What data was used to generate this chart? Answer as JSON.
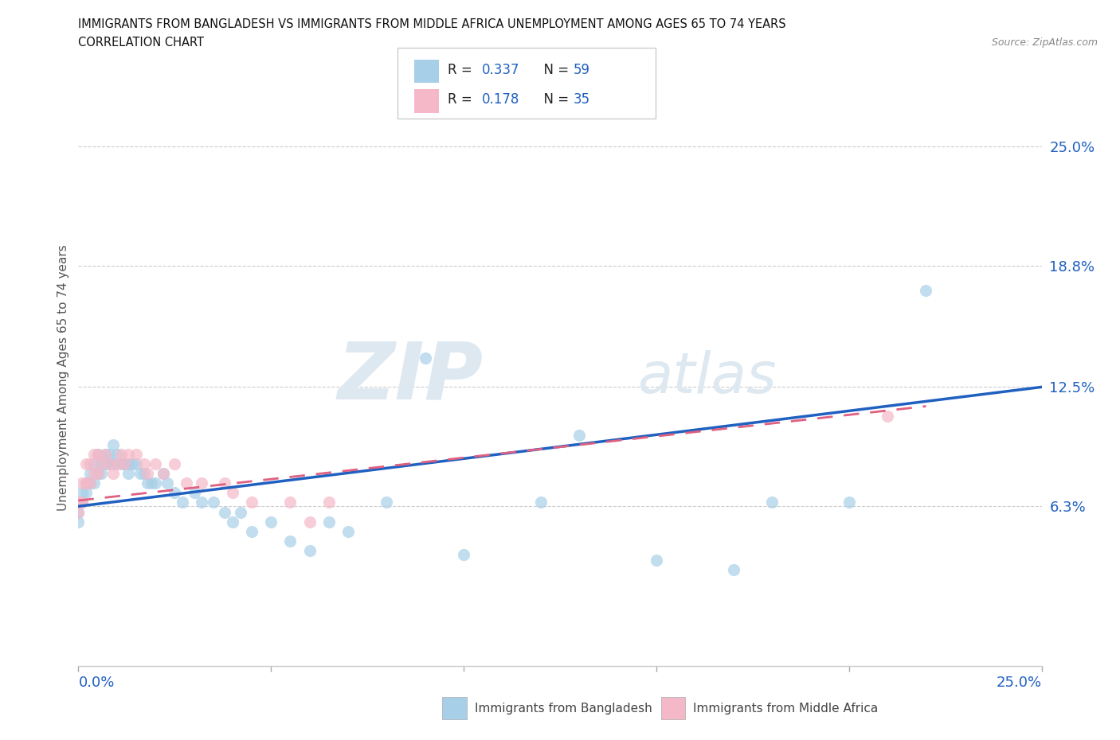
{
  "title_line1": "IMMIGRANTS FROM BANGLADESH VS IMMIGRANTS FROM MIDDLE AFRICA UNEMPLOYMENT AMONG AGES 65 TO 74 YEARS",
  "title_line2": "CORRELATION CHART",
  "source": "Source: ZipAtlas.com",
  "ylabel": "Unemployment Among Ages 65 to 74 years",
  "yticks": [
    "6.3%",
    "12.5%",
    "18.8%",
    "25.0%"
  ],
  "ytick_vals": [
    0.063,
    0.125,
    0.188,
    0.25
  ],
  "xrange": [
    0.0,
    0.25
  ],
  "yrange": [
    -0.02,
    0.28
  ],
  "color_bangladesh": "#a8cfe8",
  "color_middle_africa": "#f4b8c8",
  "color_trend_bangladesh": "#2060c0",
  "color_trend_middle_africa": "#e06080",
  "watermark_zip": "ZIP",
  "watermark_atlas": "atlas",
  "legend_label1": "Immigrants from Bangladesh",
  "legend_label2": "Immigrants from Middle Africa",
  "bang_x": [
    0.0,
    0.0,
    0.0,
    0.001,
    0.001,
    0.002,
    0.002,
    0.003,
    0.003,
    0.004,
    0.004,
    0.005,
    0.005,
    0.006,
    0.006,
    0.007,
    0.007,
    0.008,
    0.008,
    0.009,
    0.009,
    0.01,
    0.011,
    0.012,
    0.013,
    0.013,
    0.014,
    0.015,
    0.016,
    0.017,
    0.018,
    0.019,
    0.02,
    0.022,
    0.023,
    0.025,
    0.027,
    0.03,
    0.032,
    0.035,
    0.038,
    0.04,
    0.042,
    0.045,
    0.05,
    0.055,
    0.06,
    0.065,
    0.07,
    0.08,
    0.09,
    0.1,
    0.12,
    0.13,
    0.15,
    0.17,
    0.18,
    0.2,
    0.22
  ],
  "bang_y": [
    0.065,
    0.06,
    0.055,
    0.07,
    0.065,
    0.075,
    0.07,
    0.08,
    0.075,
    0.085,
    0.075,
    0.09,
    0.08,
    0.085,
    0.08,
    0.09,
    0.085,
    0.09,
    0.085,
    0.095,
    0.085,
    0.09,
    0.085,
    0.085,
    0.085,
    0.08,
    0.085,
    0.085,
    0.08,
    0.08,
    0.075,
    0.075,
    0.075,
    0.08,
    0.075,
    0.07,
    0.065,
    0.07,
    0.065,
    0.065,
    0.06,
    0.055,
    0.06,
    0.05,
    0.055,
    0.045,
    0.04,
    0.055,
    0.05,
    0.065,
    0.14,
    0.038,
    0.065,
    0.1,
    0.035,
    0.03,
    0.065,
    0.065,
    0.175
  ],
  "mid_x": [
    0.0,
    0.0,
    0.001,
    0.001,
    0.002,
    0.002,
    0.003,
    0.003,
    0.004,
    0.004,
    0.005,
    0.005,
    0.006,
    0.007,
    0.008,
    0.009,
    0.01,
    0.011,
    0.012,
    0.013,
    0.015,
    0.017,
    0.018,
    0.02,
    0.022,
    0.025,
    0.028,
    0.032,
    0.038,
    0.04,
    0.045,
    0.055,
    0.06,
    0.065,
    0.21
  ],
  "mid_y": [
    0.065,
    0.06,
    0.075,
    0.065,
    0.085,
    0.075,
    0.085,
    0.075,
    0.09,
    0.08,
    0.09,
    0.08,
    0.085,
    0.09,
    0.085,
    0.08,
    0.085,
    0.09,
    0.085,
    0.09,
    0.09,
    0.085,
    0.08,
    0.085,
    0.08,
    0.085,
    0.075,
    0.075,
    0.075,
    0.07,
    0.065,
    0.065,
    0.055,
    0.065,
    0.11
  ],
  "trend_bang_x0": 0.0,
  "trend_bang_y0": 0.063,
  "trend_bang_x1": 0.25,
  "trend_bang_y1": 0.125,
  "trend_mid_x0": 0.0,
  "trend_mid_y0": 0.066,
  "trend_mid_x1": 0.22,
  "trend_mid_y1": 0.115
}
